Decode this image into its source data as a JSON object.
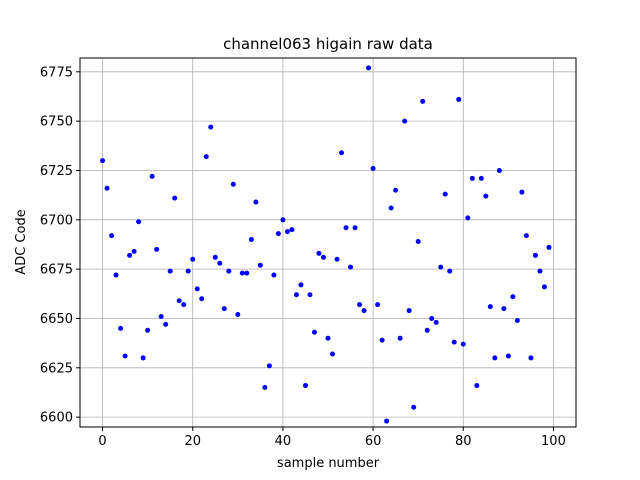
{
  "chart_data": {
    "type": "scatter",
    "title": "channel063 higain raw data",
    "xlabel": "sample number",
    "ylabel": "ADC Code",
    "xlim": [
      -5,
      105
    ],
    "ylim": [
      6595,
      6782
    ],
    "xticks": [
      0,
      20,
      40,
      60,
      80,
      100
    ],
    "yticks": [
      6600,
      6625,
      6650,
      6675,
      6700,
      6725,
      6750,
      6775
    ],
    "grid": true,
    "marker_color": "#0000ff",
    "series": [
      {
        "x": [
          0,
          1,
          2,
          3,
          4,
          5,
          6,
          7,
          8,
          9,
          10,
          11,
          12,
          13,
          14,
          15,
          16,
          17,
          18,
          19,
          20,
          21,
          22,
          23,
          24,
          25,
          26,
          27,
          28,
          29,
          30,
          31,
          32,
          33,
          34,
          35,
          36,
          37,
          38,
          39,
          40,
          41,
          42,
          43,
          44,
          45,
          46,
          47,
          48,
          49,
          50,
          51,
          52,
          53,
          54,
          55,
          56,
          57,
          58,
          59,
          60,
          61,
          62,
          63,
          64,
          65,
          66,
          67,
          68,
          69,
          70,
          71,
          72,
          73,
          74,
          75,
          76,
          77,
          78,
          79,
          80,
          81,
          82,
          83,
          84,
          85,
          86,
          87,
          88,
          89,
          90,
          91,
          92,
          93,
          94,
          95,
          96,
          97,
          98,
          99
        ],
        "y": [
          6730,
          6716,
          6692,
          6672,
          6645,
          6631,
          6682,
          6684,
          6699,
          6630,
          6644,
          6722,
          6685,
          6651,
          6647,
          6674,
          6711,
          6659,
          6657,
          6674,
          6680,
          6665,
          6660,
          6732,
          6747,
          6681,
          6678,
          6655,
          6674,
          6718,
          6652,
          6673,
          6673,
          6690,
          6709,
          6677,
          6615,
          6626,
          6672,
          6693,
          6700,
          6694,
          6695,
          6662,
          6667,
          6616,
          6662,
          6643,
          6683,
          6681,
          6640,
          6632,
          6680,
          6734,
          6696,
          6676,
          6696,
          6657,
          6654,
          6777,
          6726,
          6657,
          6639,
          6598,
          6706,
          6715,
          6640,
          6750,
          6654,
          6605,
          6689,
          6760,
          6644,
          6650,
          6648,
          6676,
          6713,
          6674,
          6638,
          6761,
          6637,
          6701,
          6721,
          6616,
          6721,
          6712,
          6656,
          6630,
          6725,
          6655,
          6631,
          6661,
          6649,
          6714,
          6692,
          6630,
          6682,
          6674,
          6666,
          6686
        ]
      }
    ]
  }
}
